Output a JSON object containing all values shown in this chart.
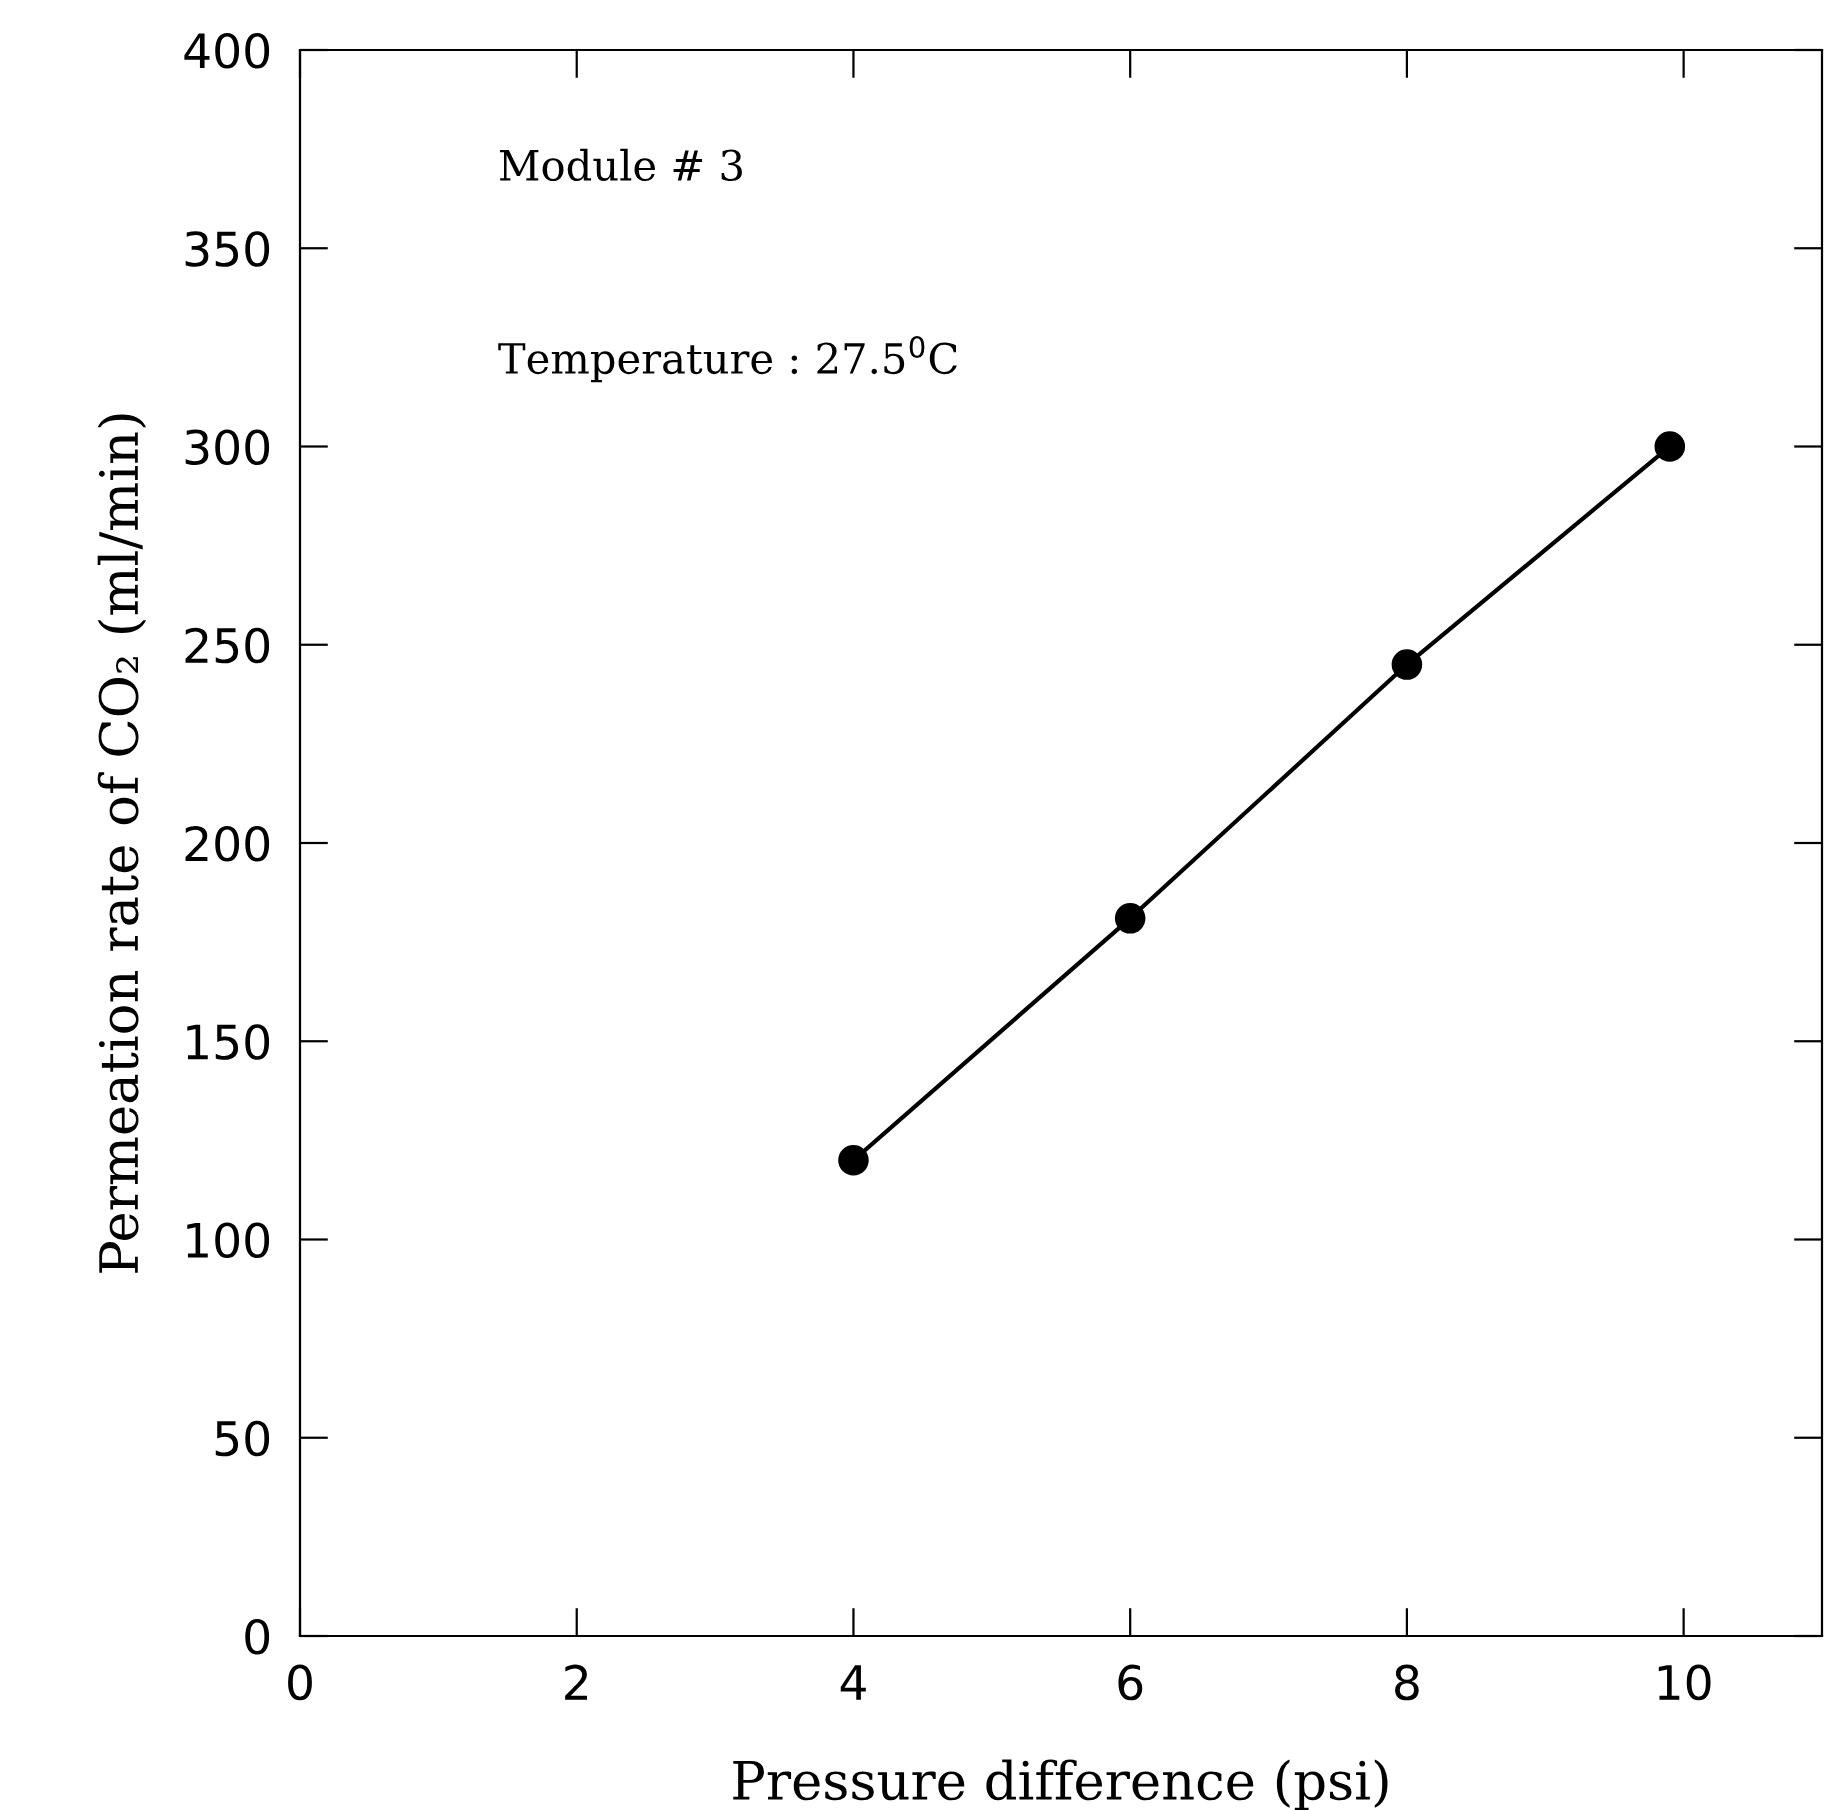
{
  "chart_data": {
    "type": "line",
    "xlabel": "Pressure difference (psi)",
    "ylabel": "Permeation rate of CO₂ (ml/min)",
    "x": [
      4,
      6,
      8,
      9.9
    ],
    "series": [
      {
        "color": "#000000",
        "values": [
          120,
          181,
          245,
          300
        ]
      }
    ],
    "marker": "circle",
    "line_style": "solid",
    "xlim": [
      0,
      11
    ],
    "xticks": [
      0,
      2,
      4,
      6,
      8,
      10
    ],
    "ylim": [
      0,
      400
    ],
    "yticks": [
      0,
      50,
      100,
      150,
      200,
      250,
      300,
      350,
      400
    ],
    "annotations": [
      "Module # 3",
      "Temperature : 27.5$^{0}$C"
    ],
    "grid": false
  }
}
